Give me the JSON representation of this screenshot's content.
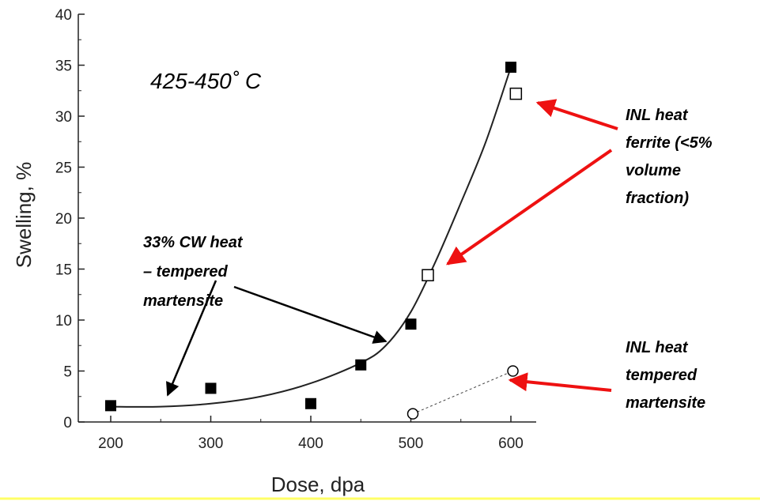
{
  "chart_data": {
    "type": "scatter",
    "title": "",
    "xlabel": "Dose, dpa",
    "ylabel": "Swelling, %",
    "xlim": [
      170,
      625
    ],
    "ylim": [
      0,
      40
    ],
    "x_ticks": [
      200,
      300,
      400,
      500,
      600
    ],
    "y_ticks": [
      0,
      5,
      10,
      15,
      20,
      25,
      30,
      35,
      40
    ],
    "series": [
      {
        "marker": "filled-square",
        "color": "#000000",
        "x": [
          200,
          300,
          400,
          450,
          500,
          600
        ],
        "y": [
          1.6,
          3.3,
          1.8,
          5.6,
          9.6,
          34.8
        ]
      },
      {
        "marker": "open-square",
        "color": "#000000",
        "x": [
          517,
          605
        ],
        "y": [
          14.4,
          32.2
        ]
      },
      {
        "marker": "open-circle",
        "color": "#000000",
        "line": "dotted",
        "x": [
          502,
          602
        ],
        "y": [
          0.8,
          5.0
        ]
      }
    ],
    "fit_curve": {
      "x": [
        200,
        250,
        300,
        350,
        400,
        450,
        475,
        500,
        525,
        550,
        575,
        600
      ],
      "y": [
        1.5,
        1.5,
        1.8,
        2.5,
        3.8,
        5.8,
        7.5,
        10.8,
        15.8,
        21.5,
        27.5,
        34.8
      ]
    },
    "annotations": {
      "temperature": "425-450˚ C",
      "cw_heat": [
        "33% CW heat",
        "– tempered",
        "martensite"
      ],
      "inl_ferrite": [
        "INL heat",
        "ferrite (<5%",
        "volume",
        "fraction)"
      ],
      "inl_tempered": [
        "INL heat",
        "tempered",
        "martensite"
      ]
    },
    "arrow_colors": {
      "cw": "#000000",
      "inl": "#ee1111"
    },
    "grid": false,
    "legend": "none"
  }
}
